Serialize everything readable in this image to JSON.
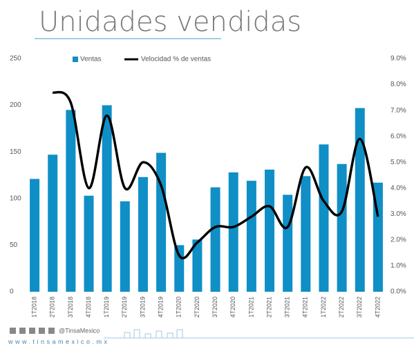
{
  "chart_data": {
    "type": "bar_line",
    "title": "Unidades vendidas",
    "categories": [
      "1T2018",
      "2T2018",
      "3T2018",
      "4T2018",
      "1T2019",
      "2T2019",
      "3T2019",
      "4T2019",
      "1T2020",
      "2T2020",
      "3T2020",
      "4T2020",
      "1T2021",
      "2T2021",
      "3T2021",
      "4T2021",
      "1T2022",
      "2T2022",
      "3T2022",
      "4T2022"
    ],
    "series": [
      {
        "name": "Ventas",
        "type": "bar",
        "color": "#0f8fc6",
        "values": [
          121,
          147,
          195,
          103,
          200,
          97,
          123,
          149,
          50,
          56,
          112,
          128,
          119,
          131,
          104,
          124,
          158,
          137,
          197,
          117
        ]
      },
      {
        "name": "Velocidad % de ventas",
        "type": "line",
        "axis": "y2",
        "color": "#000000",
        "values": [
          null,
          7.7,
          7.3,
          4.0,
          6.8,
          4.0,
          5.0,
          4.1,
          1.4,
          1.9,
          2.5,
          2.5,
          2.9,
          3.3,
          2.5,
          4.8,
          3.5,
          3.1,
          5.9,
          2.9
        ]
      }
    ],
    "ylim": [
      0,
      250
    ],
    "yticks": [
      0,
      50,
      100,
      150,
      200,
      250
    ],
    "y2lim": [
      0,
      9
    ],
    "y2ticks": [
      {
        "value": 0,
        "label": "0.0%"
      },
      {
        "value": 1,
        "label": "1.0%"
      },
      {
        "value": 2,
        "label": "2.0%"
      },
      {
        "value": 3,
        "label": "3.0%"
      },
      {
        "value": 4,
        "label": "4.0%"
      },
      {
        "value": 5,
        "label": "5.0%"
      },
      {
        "value": 6,
        "label": "6.0%"
      },
      {
        "value": 7,
        "label": "7.0%"
      },
      {
        "value": 8,
        "label": "8.0%"
      },
      {
        "value": 9,
        "label": "9.0%"
      }
    ],
    "grid": false,
    "legend": "top"
  },
  "footer": {
    "handle": "@TinsaMexico",
    "url": "www.tinsamexico.mx"
  }
}
